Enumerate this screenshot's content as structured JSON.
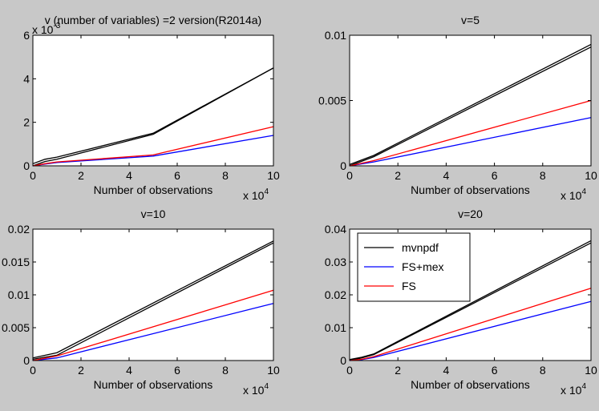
{
  "colors": {
    "figure_background": "#c8c8c8",
    "axes_background": "#ffffff",
    "axis_color": "#000000",
    "series": {
      "mvnpdf": "#000000",
      "FS+mex": "#0000ff",
      "FS": "#ff0000"
    }
  },
  "chart_data": [
    {
      "type": "line",
      "title": "v (number of variables) =2 version(R2014a)",
      "xlabel": "Number of observations",
      "ylabel": "",
      "x_multiplier_label": "x 10",
      "x_multiplier_exponent": "4",
      "y_multiplier_label": "x 10",
      "y_multiplier_exponent": "-3",
      "xlim": [
        0,
        10
      ],
      "ylim": [
        0,
        6
      ],
      "x_ticks": [
        0,
        2,
        4,
        6,
        8,
        10
      ],
      "y_ticks": [
        0,
        2,
        4,
        6
      ],
      "y_tick_labels": [
        "0",
        "2",
        "4",
        "6"
      ],
      "grid": false,
      "legend": null,
      "series": [
        {
          "name": "mvnpdf",
          "color": "#000000",
          "x": [
            0,
            0.5,
            1,
            5,
            10
          ],
          "y": [
            0.1,
            0.3,
            0.4,
            1.5,
            4.5
          ]
        },
        {
          "name": "mvnpdf",
          "color": "#000000",
          "x": [
            0,
            0.5,
            1,
            5,
            10
          ],
          "y": [
            0.0,
            0.2,
            0.3,
            1.45,
            4.5
          ]
        },
        {
          "name": "FS+mex",
          "color": "#0000ff",
          "x": [
            0,
            0.5,
            1,
            5,
            10
          ],
          "y": [
            0.0,
            0.08,
            0.15,
            0.45,
            1.4
          ]
        },
        {
          "name": "FS",
          "color": "#ff0000",
          "x": [
            0,
            0.5,
            1,
            5,
            10
          ],
          "y": [
            0.0,
            0.1,
            0.18,
            0.5,
            1.8
          ]
        }
      ]
    },
    {
      "type": "line",
      "title": "v=5",
      "xlabel": "Number of observations",
      "ylabel": "",
      "x_multiplier_label": "x 10",
      "x_multiplier_exponent": "4",
      "xlim": [
        0,
        10
      ],
      "ylim": [
        0,
        0.01
      ],
      "x_ticks": [
        0,
        2,
        4,
        6,
        8,
        10
      ],
      "y_ticks": [
        0,
        0.005,
        0.01
      ],
      "y_tick_labels": [
        "0",
        "0.005",
        "0.01"
      ],
      "grid": false,
      "legend": null,
      "series": [
        {
          "name": "mvnpdf",
          "color": "#000000",
          "x": [
            0,
            1,
            10
          ],
          "y": [
            0.0001,
            0.0008,
            0.0093
          ]
        },
        {
          "name": "mvnpdf",
          "color": "#000000",
          "x": [
            0,
            1,
            10
          ],
          "y": [
            0.0,
            0.0007,
            0.0091
          ]
        },
        {
          "name": "FS+mex",
          "color": "#0000ff",
          "x": [
            0,
            1,
            10
          ],
          "y": [
            0.0,
            0.0003,
            0.0037
          ]
        },
        {
          "name": "FS",
          "color": "#ff0000",
          "x": [
            0,
            1,
            10
          ],
          "y": [
            0.0,
            0.0004,
            0.005
          ]
        }
      ]
    },
    {
      "type": "line",
      "title": "v=10",
      "xlabel": "Number of observations",
      "ylabel": "",
      "x_multiplier_label": "x 10",
      "x_multiplier_exponent": "4",
      "xlim": [
        0,
        10
      ],
      "ylim": [
        0,
        0.02
      ],
      "x_ticks": [
        0,
        2,
        4,
        6,
        8,
        10
      ],
      "y_ticks": [
        0,
        0.005,
        0.01,
        0.015,
        0.02
      ],
      "y_tick_labels": [
        "0",
        "0.005",
        "0.01",
        "0.015",
        "0.02"
      ],
      "grid": false,
      "legend": null,
      "series": [
        {
          "name": "mvnpdf",
          "color": "#000000",
          "x": [
            0,
            1,
            10
          ],
          "y": [
            0.0004,
            0.0012,
            0.0182
          ]
        },
        {
          "name": "mvnpdf",
          "color": "#000000",
          "x": [
            0,
            1,
            10
          ],
          "y": [
            0.0002,
            0.0008,
            0.0179
          ]
        },
        {
          "name": "FS+mex",
          "color": "#0000ff",
          "x": [
            0,
            1,
            10
          ],
          "y": [
            0.0,
            0.0004,
            0.0087
          ]
        },
        {
          "name": "FS",
          "color": "#ff0000",
          "x": [
            0,
            1,
            10
          ],
          "y": [
            0.0,
            0.0007,
            0.0107
          ]
        }
      ]
    },
    {
      "type": "line",
      "title": "v=20",
      "xlabel": "Number of observations",
      "ylabel": "",
      "x_multiplier_label": "x 10",
      "x_multiplier_exponent": "4",
      "xlim": [
        0,
        10
      ],
      "ylim": [
        0,
        0.04
      ],
      "x_ticks": [
        0,
        2,
        4,
        6,
        8,
        10
      ],
      "y_ticks": [
        0,
        0.01,
        0.02,
        0.03,
        0.04
      ],
      "y_tick_labels": [
        "0",
        "0.01",
        "0.02",
        "0.03",
        "0.04"
      ],
      "grid": false,
      "legend": {
        "location": "top-left",
        "entries": [
          "mvnpdf",
          "FS+mex",
          "FS"
        ]
      },
      "series": [
        {
          "name": "mvnpdf",
          "color": "#000000",
          "x": [
            0,
            0.5,
            1,
            10
          ],
          "y": [
            0.0003,
            0.001,
            0.002,
            0.0365
          ]
        },
        {
          "name": "mvnpdf",
          "color": "#000000",
          "x": [
            0,
            0.5,
            1,
            10
          ],
          "y": [
            0.0,
            0.0008,
            0.0018,
            0.0358
          ]
        },
        {
          "name": "FS+mex",
          "color": "#0000ff",
          "x": [
            0,
            0.5,
            1,
            10
          ],
          "y": [
            0.0,
            0.0003,
            0.0009,
            0.018
          ]
        },
        {
          "name": "FS",
          "color": "#ff0000",
          "x": [
            0,
            0.5,
            1,
            10
          ],
          "y": [
            0.0,
            0.0004,
            0.0012,
            0.022
          ]
        }
      ]
    }
  ]
}
